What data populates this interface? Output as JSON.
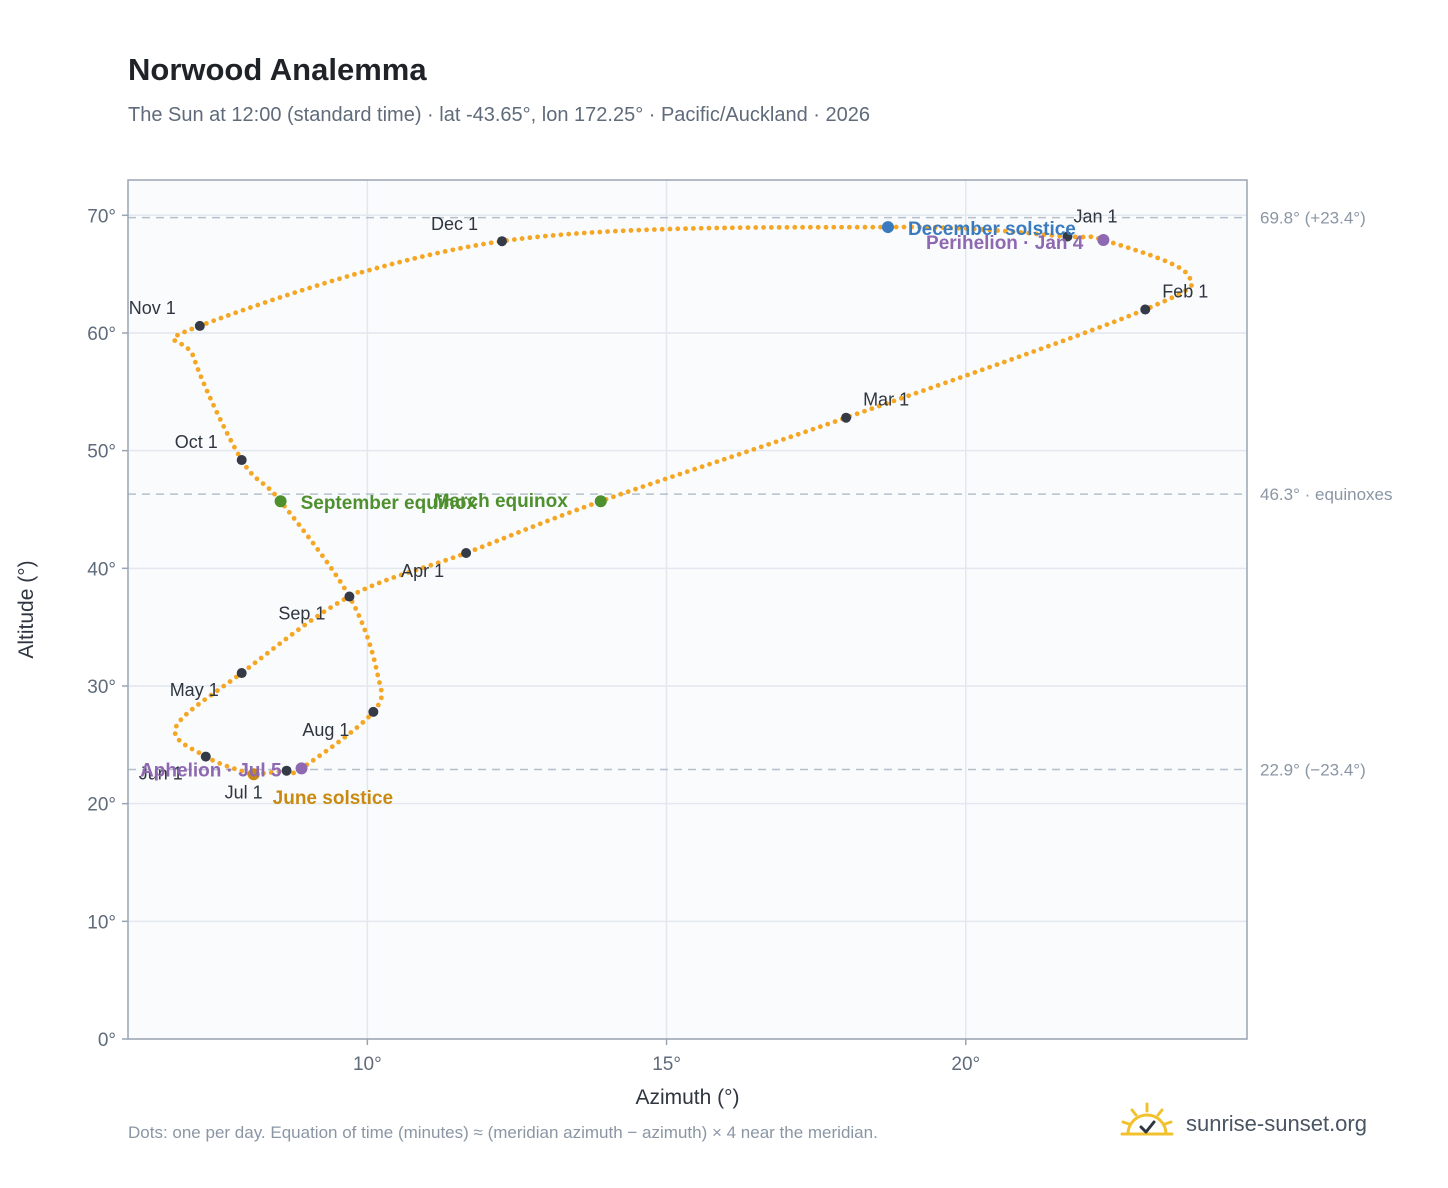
{
  "header": {
    "title": "Norwood Analemma",
    "subtitle": "The Sun at 12:00 (standard time) · lat -43.65°, lon 172.25° · Pacific/Auckland · 2026"
  },
  "footer": {
    "note": "Dots: one per day. Equation of time (minutes) ≈ (meridian azimuth − azimuth) × 4 near the meridian.",
    "brand": "sunrise-sunset.org"
  },
  "colors": {
    "path": "#f5a623",
    "month_marker": "#343a46",
    "equinox": "#4e8f2e",
    "june_solstice": "#c98a12",
    "december_solstice": "#3a7bbf",
    "apsis": "#8e68b0",
    "plot_bg": "#f9fbfd",
    "grid": "#e3e8ee",
    "refline": "#b5c0cc",
    "brand_sun": "#f2c12e"
  },
  "chart_data": {
    "type": "scatter",
    "xlabel": "Azimuth (°)",
    "ylabel": "Altitude (°)",
    "xlim": [
      6.0,
      24.7
    ],
    "ylim": [
      0,
      73
    ],
    "xticks": [
      10,
      15,
      20
    ],
    "xtick_labels": [
      "10°",
      "15°",
      "20°"
    ],
    "yticks": [
      0,
      10,
      20,
      30,
      40,
      50,
      60,
      70
    ],
    "ytick_labels": [
      "0°",
      "10°",
      "20°",
      "30°",
      "40°",
      "50°",
      "60°",
      "70°"
    ],
    "grid": true,
    "reference_lines": [
      {
        "y": 69.8,
        "label": "69.8° (+23.4°)"
      },
      {
        "y": 46.3,
        "label": "46.3° · equinoxes"
      },
      {
        "y": 22.9,
        "label": "22.9° (−23.4°)"
      }
    ],
    "path_keypoints": [
      {
        "x": 21.7,
        "y": 68.2
      },
      {
        "x": 22.3,
        "y": 67.9
      },
      {
        "x": 23.7,
        "y": 65.0
      },
      {
        "x": 23.0,
        "y": 62.0
      },
      {
        "x": 18.0,
        "y": 52.8
      },
      {
        "x": 13.9,
        "y": 45.7
      },
      {
        "x": 11.65,
        "y": 41.3
      },
      {
        "x": 9.7,
        "y": 37.6
      },
      {
        "x": 7.9,
        "y": 31.1
      },
      {
        "x": 6.8,
        "y": 26.5
      },
      {
        "x": 7.3,
        "y": 24.0
      },
      {
        "x": 8.0,
        "y": 22.6
      },
      {
        "x": 8.1,
        "y": 22.5
      },
      {
        "x": 8.65,
        "y": 22.8
      },
      {
        "x": 8.9,
        "y": 23.0
      },
      {
        "x": 10.1,
        "y": 27.8
      },
      {
        "x": 10.17,
        "y": 31.0
      },
      {
        "x": 9.7,
        "y": 37.6
      },
      {
        "x": 8.55,
        "y": 45.7
      },
      {
        "x": 7.9,
        "y": 49.2
      },
      {
        "x": 7.1,
        "y": 57.9
      },
      {
        "x": 7.2,
        "y": 60.6
      },
      {
        "x": 12.25,
        "y": 67.8
      },
      {
        "x": 18.7,
        "y": 69.0
      },
      {
        "x": 21.7,
        "y": 68.2
      }
    ],
    "day_dots": 365,
    "month_markers": [
      {
        "label": "Jan 1",
        "x": 21.7,
        "y": 68.2
      },
      {
        "label": "Feb 1",
        "x": 23.0,
        "y": 62.0
      },
      {
        "label": "Mar 1",
        "x": 18.0,
        "y": 52.8
      },
      {
        "label": "Apr 1",
        "x": 11.65,
        "y": 41.3
      },
      {
        "label": "May 1",
        "x": 7.9,
        "y": 31.1
      },
      {
        "label": "Jun 1",
        "x": 7.3,
        "y": 24.0
      },
      {
        "label": "Jul 1",
        "x": 8.65,
        "y": 22.8
      },
      {
        "label": "Aug 1",
        "x": 10.1,
        "y": 27.8
      },
      {
        "label": "Sep 1",
        "x": 9.7,
        "y": 37.6
      },
      {
        "label": "Oct 1",
        "x": 7.9,
        "y": 49.2
      },
      {
        "label": "Nov 1",
        "x": 7.2,
        "y": 60.6
      },
      {
        "label": "Dec 1",
        "x": 12.25,
        "y": 67.8
      }
    ],
    "events": [
      {
        "label": "March equinox",
        "x": 13.9,
        "y": 45.7,
        "kind": "equinox"
      },
      {
        "label": "September equinox",
        "x": 8.55,
        "y": 45.7,
        "kind": "equinox"
      },
      {
        "label": "June solstice",
        "x": 8.1,
        "y": 22.5,
        "kind": "june_solstice"
      },
      {
        "label": "December solstice",
        "x": 18.7,
        "y": 69.0,
        "kind": "december_solstice"
      },
      {
        "label": "Aphelion · Jul 5",
        "x": 8.9,
        "y": 23.0,
        "kind": "apsis"
      },
      {
        "label": "Perihelion · Jan 4",
        "x": 22.3,
        "y": 67.9,
        "kind": "apsis"
      }
    ]
  }
}
